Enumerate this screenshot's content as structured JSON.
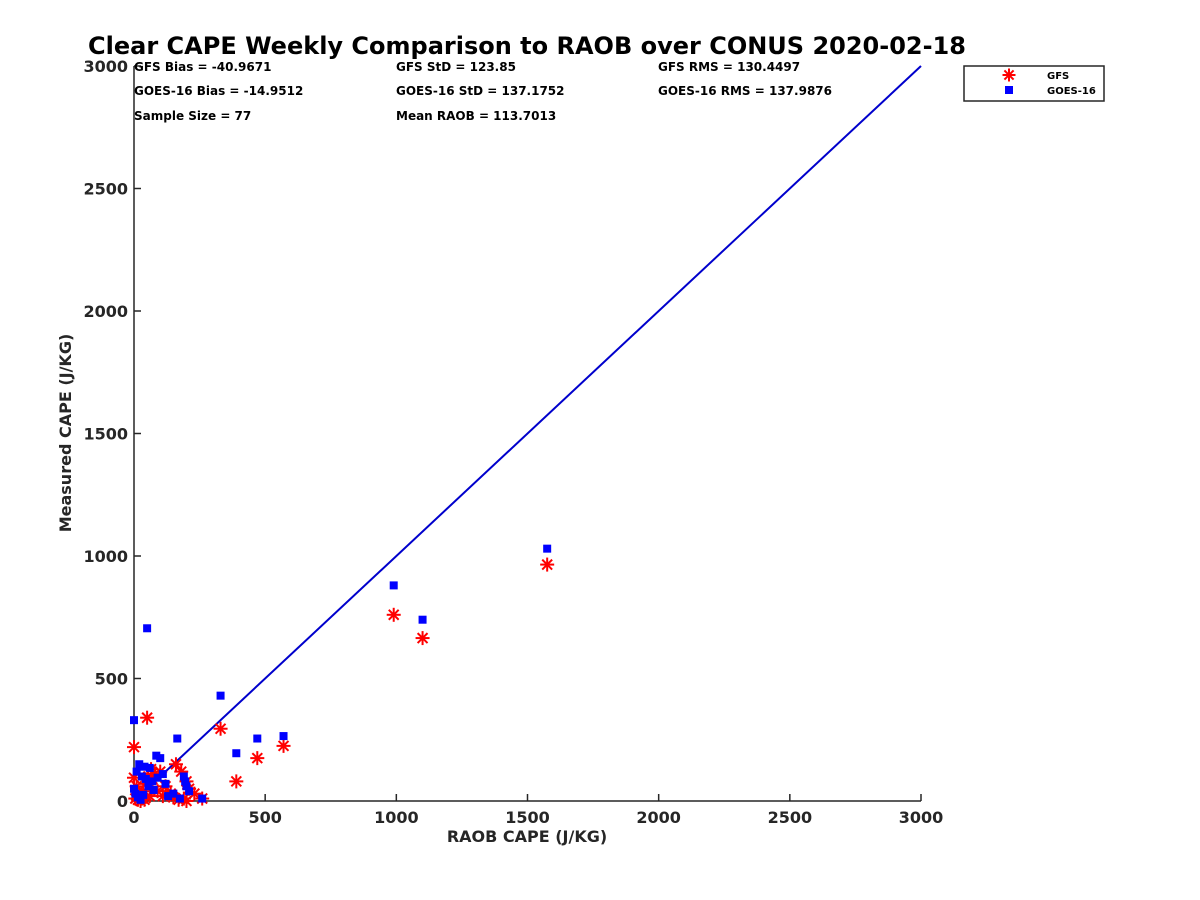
{
  "chart_data": {
    "type": "scatter",
    "title": "Clear CAPE Weekly Comparison to RAOB over CONUS 2020-02-18",
    "xlabel": "RAOB CAPE (J/KG)",
    "ylabel": "Measured CAPE (J/KG)",
    "xlim": [
      0,
      3000
    ],
    "ylim": [
      0,
      3000
    ],
    "x_ticks": [
      "0",
      "500",
      "1000",
      "1500",
      "2000",
      "2500",
      "3000"
    ],
    "y_ticks": [
      "0",
      "500",
      "1000",
      "1500",
      "2000",
      "2500",
      "3000"
    ],
    "grid": false,
    "legend_position": "top-right",
    "stats": [
      "GFS Bias = -40.9671",
      "GOES-16 Bias = -14.9512",
      "Sample Size = 77",
      "GFS StD = 123.85",
      "GOES-16 StD = 137.1752",
      "Mean RAOB = 113.7013",
      "GFS RMS = 130.4497",
      "GOES-16 RMS = 137.9876"
    ],
    "reference_line": {
      "x": [
        0,
        3000
      ],
      "y": [
        0,
        3000
      ],
      "color": "#0000cc"
    },
    "series": [
      {
        "name": "GFS",
        "marker": "asterisk",
        "color": "#ff0000",
        "points": [
          [
            0,
            220
          ],
          [
            50,
            340
          ],
          [
            330,
            295
          ],
          [
            390,
            80
          ],
          [
            470,
            175
          ],
          [
            570,
            225
          ],
          [
            160,
            150
          ],
          [
            180,
            120
          ],
          [
            200,
            80
          ],
          [
            210,
            50
          ],
          [
            230,
            30
          ],
          [
            260,
            10
          ],
          [
            0,
            95
          ],
          [
            10,
            60
          ],
          [
            20,
            30
          ],
          [
            30,
            10
          ],
          [
            40,
            5
          ],
          [
            60,
            20
          ],
          [
            70,
            90
          ],
          [
            80,
            110
          ],
          [
            100,
            120
          ],
          [
            120,
            60
          ],
          [
            140,
            30
          ],
          [
            150,
            15
          ],
          [
            5,
            10
          ],
          [
            15,
            5
          ],
          [
            25,
            0
          ],
          [
            35,
            40
          ],
          [
            45,
            70
          ],
          [
            55,
            100
          ],
          [
            65,
            130
          ],
          [
            90,
            40
          ],
          [
            110,
            20
          ],
          [
            170,
            5
          ],
          [
            190,
            10
          ],
          [
            200,
            0
          ],
          [
            990,
            760
          ],
          [
            1100,
            665
          ],
          [
            1575,
            965
          ]
        ]
      },
      {
        "name": "GOES-16",
        "marker": "square",
        "color": "#0000ff",
        "points": [
          [
            0,
            330
          ],
          [
            50,
            705
          ],
          [
            330,
            430
          ],
          [
            390,
            195
          ],
          [
            470,
            255
          ],
          [
            570,
            265
          ],
          [
            165,
            255
          ],
          [
            85,
            185
          ],
          [
            100,
            175
          ],
          [
            20,
            150
          ],
          [
            40,
            140
          ],
          [
            60,
            135
          ],
          [
            10,
            120
          ],
          [
            30,
            100
          ],
          [
            45,
            90
          ],
          [
            70,
            80
          ],
          [
            90,
            95
          ],
          [
            110,
            110
          ],
          [
            190,
            100
          ],
          [
            195,
            80
          ],
          [
            210,
            40
          ],
          [
            260,
            10
          ],
          [
            0,
            50
          ],
          [
            5,
            30
          ],
          [
            15,
            15
          ],
          [
            25,
            5
          ],
          [
            35,
            25
          ],
          [
            55,
            60
          ],
          [
            75,
            45
          ],
          [
            130,
            20
          ],
          [
            150,
            30
          ],
          [
            175,
            10
          ],
          [
            200,
            60
          ],
          [
            120,
            70
          ],
          [
            990,
            880
          ],
          [
            1100,
            740
          ],
          [
            1575,
            1030
          ]
        ]
      }
    ]
  }
}
